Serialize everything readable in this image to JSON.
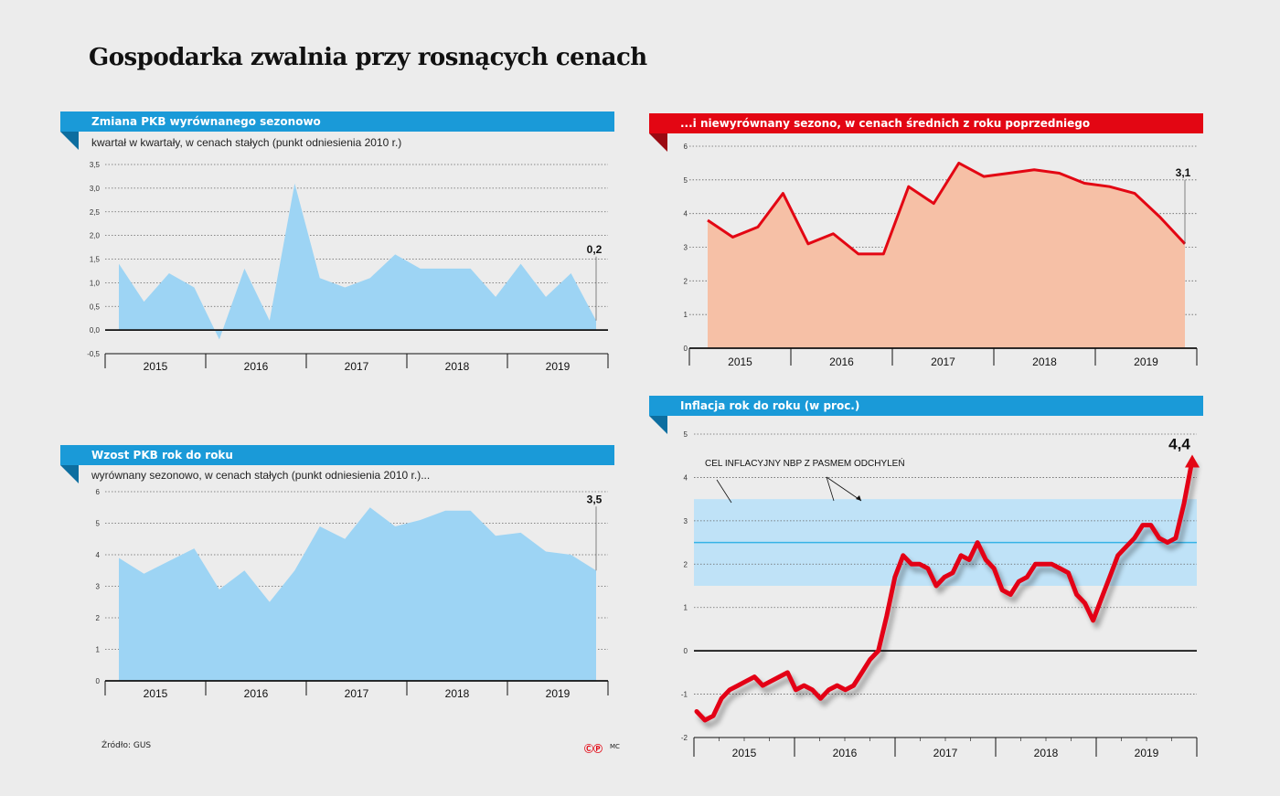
{
  "title": "Gospodarka zwalnia przy rosnących cenach",
  "source_label": "Źródło: GUS",
  "logo_text": "ⒸⓅ",
  "author": "MC",
  "colors": {
    "blue": "#1a9ad8",
    "red": "#e30613",
    "light_blue_fill": "#9dd4f4",
    "salmon_fill": "#f6c0a6",
    "band": "#bfe2f7",
    "target_line": "#35b2e6"
  },
  "chart_data": [
    {
      "id": "gdp_qoq",
      "type": "area",
      "title": "Zmiana PKB wyrównanego sezonowo",
      "subtitle": "kwartał w kwartały, w cenach stałych (punkt odniesienia 2010 r.)",
      "ylim": [
        -0.5,
        3.5
      ],
      "yticks": [
        -0.5,
        0.0,
        0.5,
        1.0,
        1.5,
        2.0,
        2.5,
        3.0,
        3.5
      ],
      "ytick_labels": [
        "-0,5",
        "0,0",
        "0,5",
        "1,0",
        "1,5",
        "2,0",
        "2,5",
        "3,0",
        "3,5"
      ],
      "x_labels": [
        "2015",
        "2016",
        "2017",
        "2018",
        "2019"
      ],
      "values": [
        1.4,
        0.6,
        1.2,
        0.9,
        -0.2,
        1.3,
        0.2,
        3.1,
        1.1,
        0.9,
        1.1,
        1.6,
        1.3,
        1.3,
        1.3,
        0.7,
        1.4,
        0.7,
        1.2,
        0.2
      ],
      "last_label": "0,2"
    },
    {
      "id": "gdp_yoy_sa",
      "type": "area",
      "title": "Wzost PKB rok do roku",
      "subtitle": "wyrównany sezonowo, w cenach stałych (punkt odniesienia 2010 r.)...",
      "ylim": [
        0,
        6
      ],
      "yticks": [
        0,
        1,
        2,
        3,
        4,
        5,
        6
      ],
      "ytick_labels": [
        "0",
        "1",
        "2",
        "3",
        "4",
        "5",
        "6"
      ],
      "x_labels": [
        "2015",
        "2016",
        "2017",
        "2018",
        "2019"
      ],
      "values": [
        3.9,
        3.4,
        3.8,
        4.2,
        2.9,
        3.5,
        2.5,
        3.5,
        4.9,
        4.5,
        5.5,
        4.9,
        5.1,
        5.4,
        5.4,
        4.6,
        4.7,
        4.1,
        4.0,
        3.5
      ],
      "last_label": "3,5"
    },
    {
      "id": "gdp_yoy_nsa",
      "type": "area",
      "title": "...i niewyrównany sezono, w cenach średnich z roku poprzedniego",
      "ylim": [
        0,
        6
      ],
      "yticks": [
        0,
        1,
        2,
        3,
        4,
        5,
        6
      ],
      "ytick_labels": [
        "0",
        "1",
        "2",
        "3",
        "4",
        "5",
        "6"
      ],
      "x_labels": [
        "2015",
        "2016",
        "2017",
        "2018",
        "2019"
      ],
      "values": [
        3.8,
        3.3,
        3.6,
        4.6,
        3.1,
        3.4,
        2.8,
        2.8,
        4.8,
        4.3,
        5.5,
        5.1,
        5.2,
        5.3,
        5.2,
        4.9,
        4.8,
        4.6,
        3.9,
        3.1
      ],
      "last_label": "3,1"
    },
    {
      "id": "cpi",
      "type": "line",
      "title": "Inflacja rok do roku (w proc.)",
      "annotation": "CEL INFLACYJNY NBP Z PASMEM ODCHYLEŃ",
      "ylim": [
        -2,
        5
      ],
      "yticks": [
        -2,
        -1,
        0,
        1,
        2,
        3,
        4,
        5
      ],
      "ytick_labels": [
        "-2",
        "-1",
        "0",
        "1",
        "2",
        "3",
        "4",
        "5"
      ],
      "x_labels": [
        "2015",
        "2016",
        "2017",
        "2018",
        "2019"
      ],
      "target": 2.5,
      "band": [
        1.5,
        3.5
      ],
      "values": [
        -1.4,
        -1.6,
        -1.5,
        -1.1,
        -0.9,
        -0.8,
        -0.7,
        -0.6,
        -0.8,
        -0.7,
        -0.6,
        -0.5,
        -0.9,
        -0.8,
        -0.9,
        -1.1,
        -0.9,
        -0.8,
        -0.9,
        -0.8,
        -0.5,
        -0.2,
        0.0,
        0.8,
        1.7,
        2.2,
        2.0,
        2.0,
        1.9,
        1.5,
        1.7,
        1.8,
        2.2,
        2.1,
        2.5,
        2.1,
        1.9,
        1.4,
        1.3,
        1.6,
        1.7,
        2.0,
        2.0,
        2.0,
        1.9,
        1.8,
        1.3,
        1.1,
        0.7,
        1.2,
        1.7,
        2.2,
        2.4,
        2.6,
        2.9,
        2.9,
        2.6,
        2.5,
        2.6,
        3.4,
        4.4
      ],
      "last_label": "4,4"
    }
  ]
}
